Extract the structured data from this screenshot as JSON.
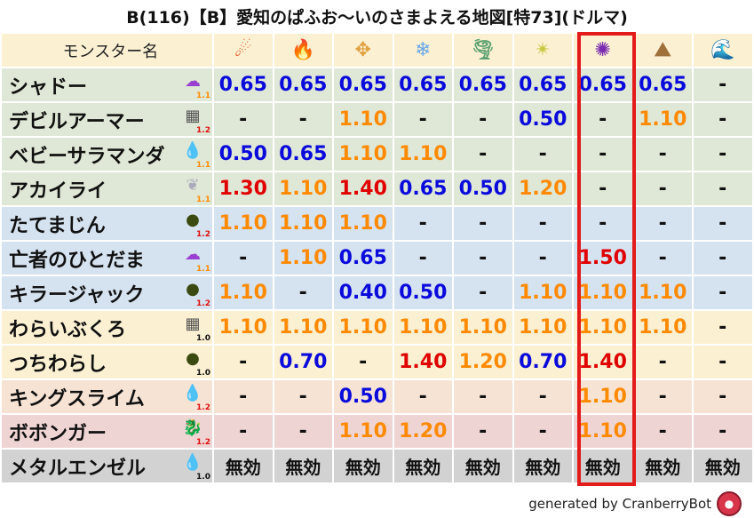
{
  "title": "B(116)【B】愛知のぱふお〜いのさまよえる地図[特73](ドルマ)",
  "header": {
    "name_label": "モンスター名",
    "columns": [
      {
        "icon": "mera-fire-icon",
        "glyph": "☄",
        "color": "#e84a1a"
      },
      {
        "icon": "gira-flame-icon",
        "glyph": "🔥",
        "color": "#f0702a"
      },
      {
        "icon": "io-explosion-icon",
        "glyph": "✥",
        "color": "#e0a040"
      },
      {
        "icon": "hyado-ice-icon",
        "glyph": "❄",
        "color": "#6aa8e8"
      },
      {
        "icon": "bagi-wind-icon",
        "glyph": "🌪",
        "color": "#5aa070"
      },
      {
        "icon": "dein-light-icon",
        "glyph": "✴",
        "color": "#c8c840"
      },
      {
        "icon": "doruma-dark-icon",
        "glyph": "✺",
        "color": "#7a2ab0"
      },
      {
        "icon": "jibaria-earth-icon",
        "glyph": "⛰",
        "color": "#a0703a"
      },
      {
        "icon": "water-wave-icon",
        "glyph": "🌊",
        "color": "#1a6ad0"
      }
    ]
  },
  "highlight_column": 6,
  "colors": {
    "low": "#0a0adc",
    "mid": "#ff8a00",
    "high": "#e00000",
    "dash": "#111111",
    "level_mid": "#ff8a00",
    "level_high": "#e01010",
    "level_base": "#111111"
  },
  "rows": [
    {
      "name": "シャドー",
      "icon": "gas-monster-icon",
      "glyph": "☁",
      "iconColor": "#9a40d0",
      "level": "1.1",
      "bg": "#dfe8d6",
      "values": [
        "0.65",
        "0.65",
        "0.65",
        "0.65",
        "0.65",
        "0.65",
        "0.65",
        "0.65",
        "-"
      ]
    },
    {
      "name": "デビルアーマー",
      "icon": "brick-icon",
      "glyph": "▦",
      "iconColor": "#555",
      "level": "1.2",
      "bg": "#dfe8d6",
      "values": [
        "-",
        "-",
        "1.10",
        "-",
        "-",
        "0.50",
        "-",
        "1.10",
        "-"
      ]
    },
    {
      "name": "ベビーサラマンダ",
      "icon": "water-drop-icon",
      "glyph": "💧",
      "iconColor": "#3a9ae8",
      "level": "1.1",
      "bg": "#dfe8d6",
      "values": [
        "0.50",
        "0.65",
        "1.10",
        "1.10",
        "-",
        "-",
        "-",
        "-",
        "-"
      ]
    },
    {
      "name": "アカイライ",
      "icon": "wing-icon",
      "glyph": "❦",
      "iconColor": "#aab",
      "level": "1.1",
      "bg": "#dfe8d6",
      "values": [
        "1.30",
        "1.10",
        "1.40",
        "0.65",
        "0.50",
        "1.20",
        "-",
        "-",
        "-"
      ]
    },
    {
      "name": "たてまじん",
      "icon": "ghost-icon",
      "glyph": "●",
      "iconColor": "#3a4a10",
      "level": "1.2",
      "bg": "#d5e2ef",
      "values": [
        "1.10",
        "1.10",
        "1.10",
        "-",
        "-",
        "-",
        "-",
        "-",
        "-"
      ]
    },
    {
      "name": "亡者のひとだま",
      "icon": "gas-monster-icon",
      "glyph": "☁",
      "iconColor": "#9a40d0",
      "level": "1.1",
      "bg": "#d5e2ef",
      "values": [
        "-",
        "1.10",
        "0.65",
        "-",
        "-",
        "-",
        "1.50",
        "-",
        "-"
      ]
    },
    {
      "name": "キラージャック",
      "icon": "ghost-icon",
      "glyph": "●",
      "iconColor": "#3a4a10",
      "level": "1.2",
      "bg": "#d5e2ef",
      "values": [
        "1.10",
        "-",
        "0.40",
        "0.50",
        "-",
        "1.10",
        "1.10",
        "1.10",
        "-"
      ]
    },
    {
      "name": "わらいぶくろ",
      "icon": "brick-icon",
      "glyph": "▦",
      "iconColor": "#555",
      "level": "1.0",
      "bg": "#fbf0d2",
      "values": [
        "1.10",
        "1.10",
        "1.10",
        "1.10",
        "1.10",
        "1.10",
        "1.10",
        "1.10",
        "-"
      ]
    },
    {
      "name": "つちわらし",
      "icon": "ghost-icon",
      "glyph": "●",
      "iconColor": "#3a4a10",
      "level": "1.0",
      "bg": "#fbf0d2",
      "values": [
        "-",
        "0.70",
        "-",
        "1.40",
        "1.20",
        "0.70",
        "1.40",
        "-",
        "-"
      ]
    },
    {
      "name": "キングスライム",
      "icon": "slime-icon",
      "glyph": "💧",
      "iconColor": "#3a9ae8",
      "level": "1.2",
      "bg": "#f7e3d4",
      "values": [
        "-",
        "-",
        "0.50",
        "-",
        "-",
        "-",
        "1.10",
        "-",
        "-"
      ]
    },
    {
      "name": "ボボンガー",
      "icon": "dragon-icon",
      "glyph": "🐉",
      "iconColor": "#c01818",
      "level": "1.2",
      "bg": "#efd4d4",
      "values": [
        "-",
        "-",
        "1.10",
        "1.20",
        "-",
        "-",
        "1.10",
        "-",
        "-"
      ]
    },
    {
      "name": "メタルエンゼル",
      "icon": "slime-icon",
      "glyph": "💧",
      "iconColor": "#3a9ae8",
      "level": "1.0",
      "bg": "#d2d2d2",
      "values": [
        "無効",
        "無効",
        "無効",
        "無効",
        "無効",
        "無効",
        "無効",
        "無効",
        "無効"
      ]
    }
  ],
  "footer": {
    "text": "generated by CranberryBot",
    "logo": "cranberry-bot-logo"
  }
}
